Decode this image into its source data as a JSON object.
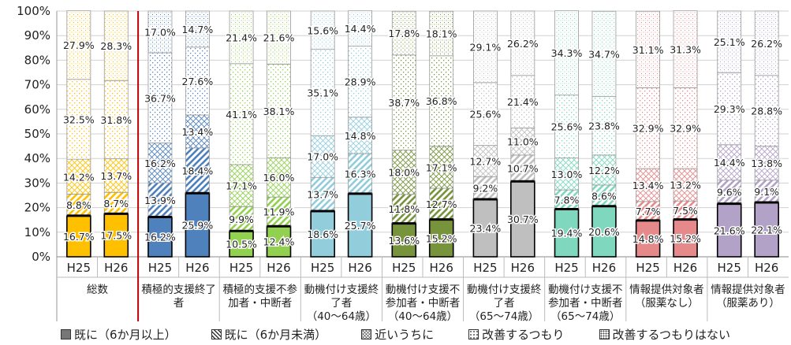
{
  "chart_data": {
    "type": "bar",
    "stacked": true,
    "y_axis": {
      "min": 0,
      "max": 100,
      "step": 10,
      "unit": "%",
      "tick_labels": [
        "0%",
        "10%",
        "20%",
        "30%",
        "40%",
        "50%",
        "60%",
        "70%",
        "80%",
        "90%",
        "100%"
      ]
    },
    "grid": true,
    "legend_position": "bottom",
    "groups": [
      {
        "label_lines": [
          "総数"
        ],
        "bars": [
          {
            "year": "H25",
            "values": [
              16.7,
              8.8,
              14.2,
              32.5,
              27.9
            ]
          },
          {
            "year": "H26",
            "values": [
              17.5,
              8.7,
              13.7,
              31.8,
              28.3
            ]
          }
        ]
      },
      {
        "label_lines": [
          "積極的支援終了",
          "者"
        ],
        "bars": [
          {
            "year": "H25",
            "values": [
              16.2,
              13.9,
              16.2,
              36.7,
              17.0
            ]
          },
          {
            "year": "H26",
            "values": [
              25.9,
              18.4,
              13.4,
              27.6,
              14.7
            ]
          }
        ]
      },
      {
        "label_lines": [
          "積極的支援不参",
          "加者・中断者"
        ],
        "bars": [
          {
            "year": "H25",
            "values": [
              10.5,
              9.9,
              17.1,
              41.1,
              21.4
            ]
          },
          {
            "year": "H26",
            "values": [
              12.4,
              11.9,
              16.0,
              38.1,
              21.6
            ]
          }
        ]
      },
      {
        "label_lines": [
          "動機付け支援終",
          "了者",
          "（40～64歳）"
        ],
        "bars": [
          {
            "year": "H25",
            "values": [
              18.6,
              13.7,
              17.0,
              35.1,
              15.6
            ]
          },
          {
            "year": "H26",
            "values": [
              25.7,
              16.3,
              14.8,
              28.9,
              14.4
            ]
          }
        ]
      },
      {
        "label_lines": [
          "動機付け支援不",
          "参加者・中断者",
          "（40～64歳）"
        ],
        "bars": [
          {
            "year": "H25",
            "values": [
              13.6,
              11.8,
              18.0,
              38.7,
              17.8
            ]
          },
          {
            "year": "H26",
            "values": [
              15.2,
              12.7,
              17.1,
              36.8,
              18.1
            ]
          }
        ]
      },
      {
        "label_lines": [
          "動機付け支援終",
          "了者",
          "（65～74歳）"
        ],
        "bars": [
          {
            "year": "H25",
            "values": [
              23.4,
              9.2,
              12.7,
              25.6,
              29.1
            ]
          },
          {
            "year": "H26",
            "values": [
              30.7,
              10.7,
              11.0,
              21.4,
              26.2
            ]
          }
        ]
      },
      {
        "label_lines": [
          "動機付け支援不",
          "参加者・中断者",
          "（65～74歳）"
        ],
        "bars": [
          {
            "year": "H25",
            "values": [
              19.4,
              7.8,
              13.0,
              25.6,
              34.3
            ]
          },
          {
            "year": "H26",
            "values": [
              20.6,
              8.6,
              12.2,
              23.8,
              34.7
            ]
          }
        ]
      },
      {
        "label_lines": [
          "情報提供対象者",
          "（服薬なし）"
        ],
        "bars": [
          {
            "year": "H25",
            "values": [
              14.8,
              7.7,
              13.4,
              32.9,
              31.1
            ]
          },
          {
            "year": "H26",
            "values": [
              15.2,
              7.5,
              13.2,
              32.9,
              31.3
            ]
          }
        ]
      },
      {
        "label_lines": [
          "情報提供対象者",
          "（服薬あり）"
        ],
        "bars": [
          {
            "year": "H25",
            "values": [
              21.6,
              9.6,
              14.4,
              29.3,
              25.1
            ]
          },
          {
            "year": "H26",
            "values": [
              22.1,
              9.1,
              13.8,
              28.8,
              26.2
            ]
          }
        ]
      }
    ],
    "group_colors": [
      "#FFC000",
      "#4F81BD",
      "#92D050",
      "#92CDDC",
      "#77933C",
      "#BFBFBF",
      "#7FD8BE",
      "#E6898A",
      "#B3A2C7"
    ],
    "legend": [
      {
        "label": "既に（6か月以上）",
        "pattern": "solid"
      },
      {
        "label": "既に（6か月未満）",
        "pattern": "diagonal"
      },
      {
        "label": "近いうちに",
        "pattern": "cross"
      },
      {
        "label": "改善するつもり",
        "pattern": "dots-sparse"
      },
      {
        "label": "改善するつもりはない",
        "pattern": "dots-dense"
      }
    ],
    "separator_color": "#C00000"
  }
}
